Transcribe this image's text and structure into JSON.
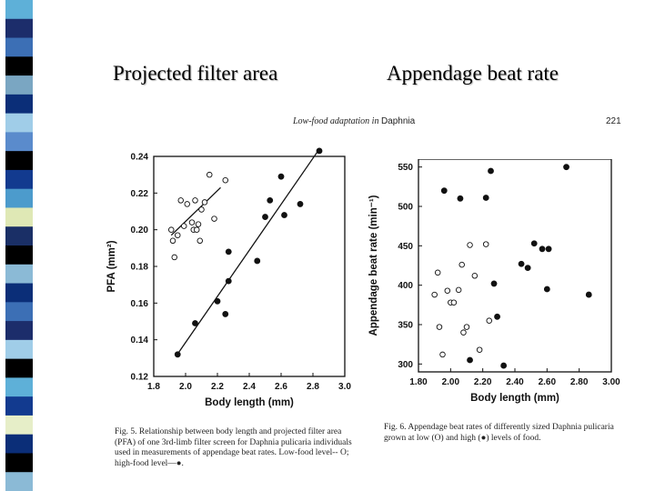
{
  "slide": {
    "title_left": "Projected filter area",
    "title_right": "Appendage beat rate"
  },
  "stripe": {
    "colors": [
      "#5eb0d8",
      "#1c2d6b",
      "#3c6fb5",
      "#000000",
      "#7aa6c2",
      "#0b2e78",
      "#a0cde8",
      "#5a8bcc",
      "#000000",
      "#123a8f",
      "#4c9bcc",
      "#dfe8b5",
      "#1a2f66",
      "#000000",
      "#8bbad6",
      "#0b2e78",
      "#3c6fb5",
      "#1c2d6b",
      "#a0cde8",
      "#000000",
      "#5eb0d8",
      "#123a8f",
      "#e6eec8",
      "#0b2e78",
      "#000000",
      "#8bbad6"
    ]
  },
  "page_header": {
    "running_head": "Low-food adaptation in",
    "running_head_genus": "Daphnia",
    "page_number": "221"
  },
  "captions": {
    "fig5": "Fig. 5.   Relationship between body length and projected filter area (PFA) of one 3rd-limb filter screen for Daphnia pulicaria individuals used in measurements of appendage beat rates. Low-food level-- O; high-food level—●.",
    "fig6": "Fig. 6.   Appendage beat rates of differently sized Daphnia pulicaria grown at low (O) and high (●) levels of food."
  },
  "chart_data": [
    {
      "type": "scatter",
      "xlabel": "Body length (mm)",
      "ylabel": "PFA (mm²)",
      "xlim": [
        1.8,
        3.0
      ],
      "ylim": [
        0.12,
        0.24
      ],
      "xticks": [
        1.8,
        2.0,
        2.2,
        2.4,
        2.6,
        2.8,
        3.0
      ],
      "yticks": [
        0.12,
        0.14,
        0.16,
        0.18,
        0.2,
        0.22,
        0.24
      ],
      "xtick_labels": [
        "1.8",
        "2.0",
        "2.2",
        "2.4",
        "2.6",
        "2.8",
        "3.0"
      ],
      "ytick_labels": [
        "0.12",
        "0.14",
        "0.16",
        "0.18",
        "0.20",
        "0.22",
        "0.24"
      ],
      "series": [
        {
          "marker": "open-circle",
          "x": [
            1.91,
            1.92,
            1.93,
            1.95,
            1.97,
            1.99,
            2.01,
            2.04,
            2.05,
            2.06,
            2.07,
            2.08,
            2.09,
            2.1,
            2.12,
            2.15,
            2.18,
            2.25
          ],
          "y": [
            0.2,
            0.194,
            0.185,
            0.197,
            0.216,
            0.202,
            0.214,
            0.204,
            0.2,
            0.216,
            0.2,
            0.203,
            0.194,
            0.211,
            0.215,
            0.23,
            0.206,
            0.227
          ],
          "fit": [
            [
              1.91,
              0.197
            ],
            [
              2.22,
              0.223
            ]
          ]
        },
        {
          "marker": "filled-circle",
          "x": [
            1.95,
            2.06,
            2.2,
            2.25,
            2.27,
            2.27,
            2.45,
            2.5,
            2.53,
            2.6,
            2.62,
            2.72,
            2.84
          ],
          "y": [
            0.132,
            0.149,
            0.161,
            0.154,
            0.172,
            0.188,
            0.183,
            0.207,
            0.216,
            0.229,
            0.208,
            0.214,
            0.243
          ],
          "fit": [
            [
              1.94,
              0.131
            ],
            [
              2.84,
              0.244
            ]
          ]
        }
      ]
    },
    {
      "type": "scatter",
      "xlabel": "Body length (mm)",
      "ylabel": "Appendage beat rate (min⁻¹)",
      "xlim": [
        1.8,
        3.0
      ],
      "ylim": [
        290,
        560
      ],
      "xticks": [
        1.8,
        2.0,
        2.2,
        2.4,
        2.6,
        2.8,
        3.0
      ],
      "yticks": [
        300,
        350,
        400,
        450,
        500,
        550
      ],
      "xtick_labels": [
        "1.80",
        "2.00",
        "2.20",
        "2.40",
        "2.60",
        "2.80",
        "3.00"
      ],
      "ytick_labels": [
        "300",
        "350",
        "400",
        "450",
        "500",
        "550"
      ],
      "series": [
        {
          "marker": "open-circle",
          "x": [
            1.9,
            1.92,
            1.93,
            1.95,
            1.98,
            2.0,
            2.02,
            2.05,
            2.07,
            2.08,
            2.1,
            2.12,
            2.15,
            2.18,
            2.22,
            2.24
          ],
          "y": [
            388,
            416,
            347,
            312,
            393,
            378,
            378,
            394,
            426,
            340,
            347,
            451,
            412,
            318,
            452,
            355
          ],
          "fit": []
        },
        {
          "marker": "filled-circle",
          "x": [
            1.96,
            2.06,
            2.12,
            2.22,
            2.25,
            2.27,
            2.29,
            2.33,
            2.44,
            2.48,
            2.52,
            2.57,
            2.6,
            2.61,
            2.72,
            2.86
          ],
          "y": [
            520,
            510,
            305,
            511,
            545,
            402,
            360,
            298,
            427,
            422,
            453,
            446,
            395,
            446,
            550,
            388
          ],
          "fit": []
        }
      ]
    }
  ]
}
